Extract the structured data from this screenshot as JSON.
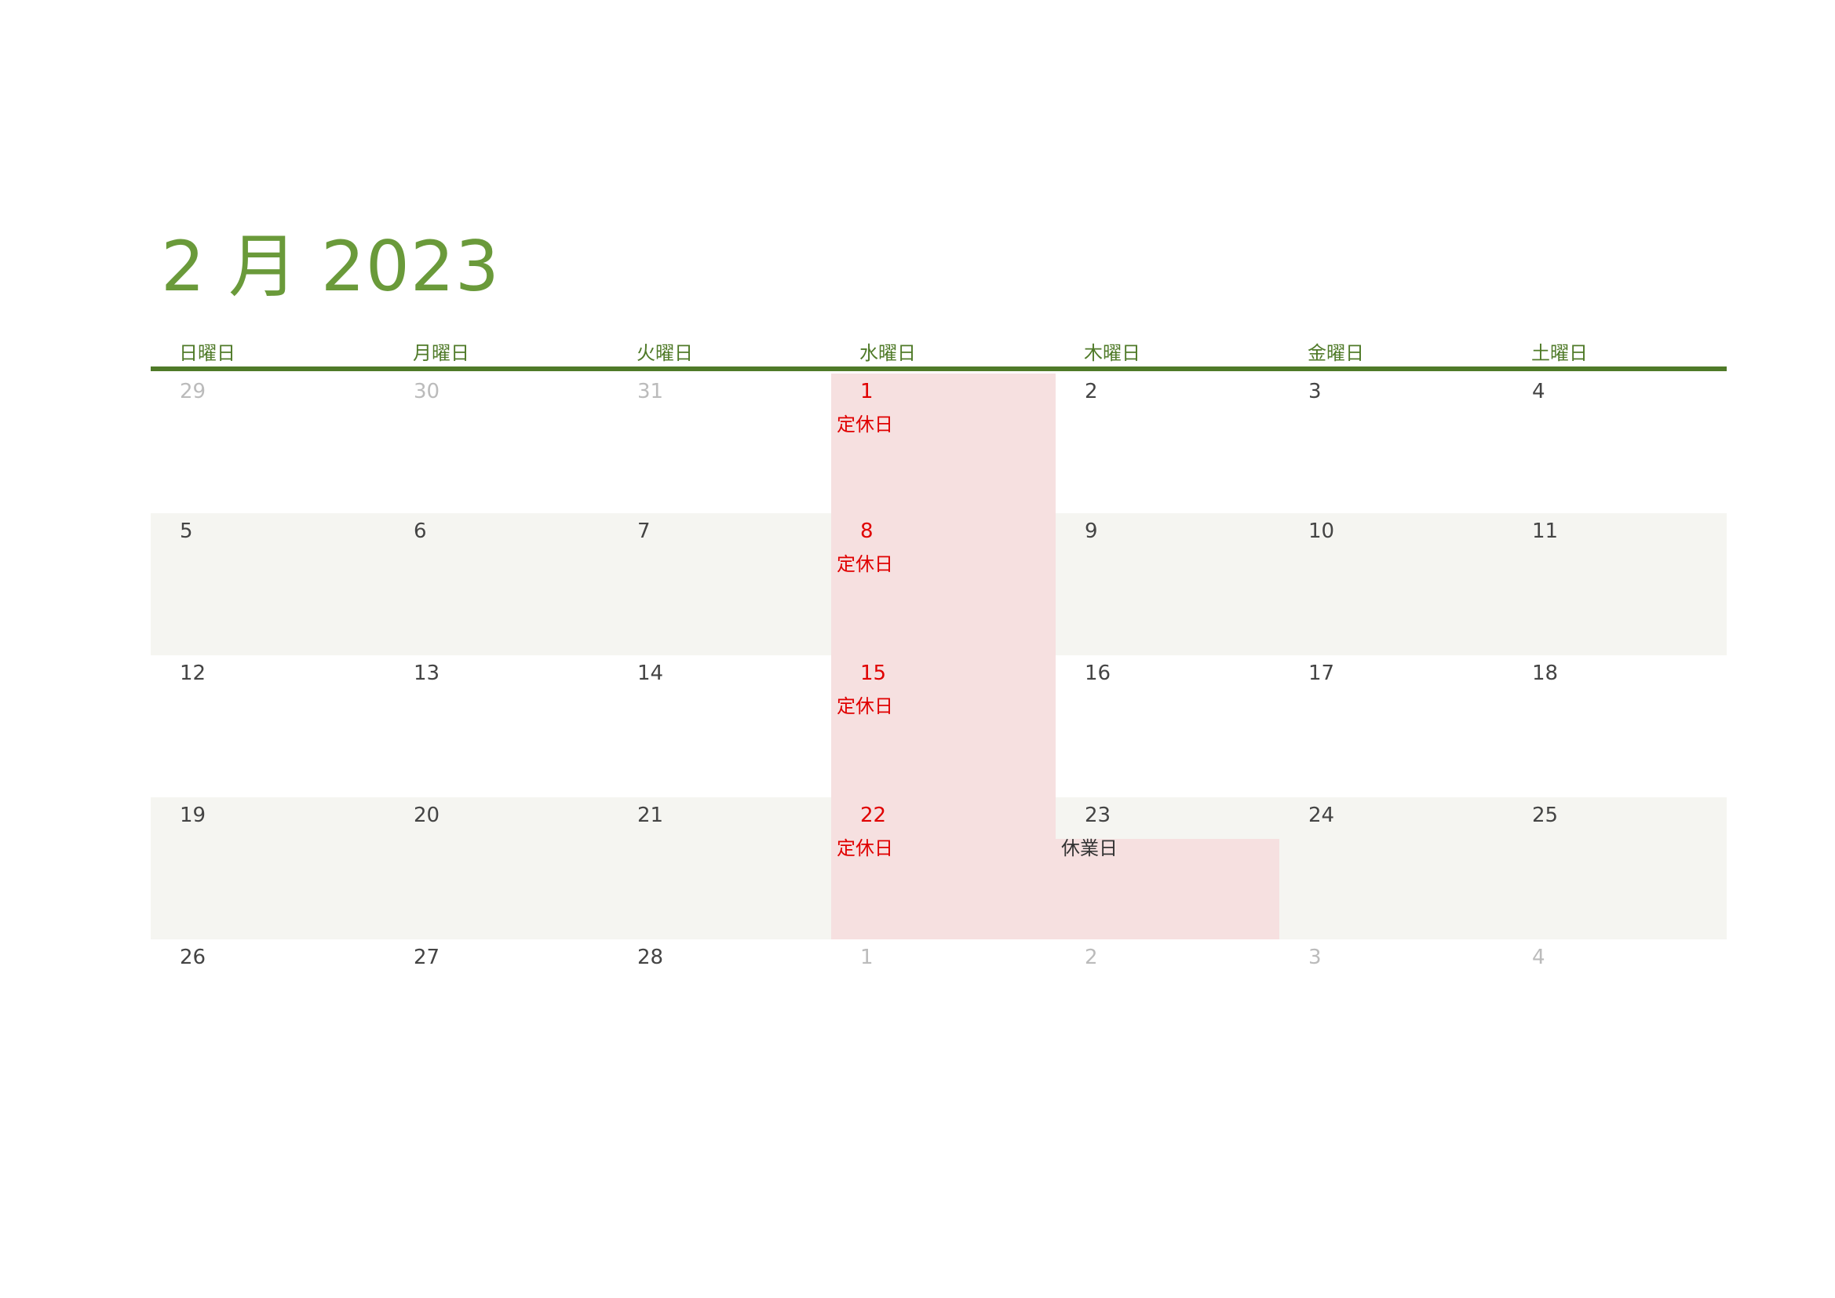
{
  "title": "2 月 2023",
  "weekdays": [
    "日曜日",
    "月曜日",
    "火曜日",
    "水曜日",
    "木曜日",
    "金曜日",
    "土曜日"
  ],
  "colors": {
    "accent": "#4f7a28",
    "title": "#6a9a3a",
    "closed_text": "#e00000",
    "closed_fill": "#f6e0e0",
    "stripe": "#f5f5f1"
  },
  "weeks": [
    [
      {
        "day": "29",
        "muted": true
      },
      {
        "day": "30",
        "muted": true
      },
      {
        "day": "31",
        "muted": true
      },
      {
        "day": "1",
        "closed": true,
        "note": "定休日"
      },
      {
        "day": "2"
      },
      {
        "day": "3"
      },
      {
        "day": "4"
      }
    ],
    [
      {
        "day": "5"
      },
      {
        "day": "6"
      },
      {
        "day": "7"
      },
      {
        "day": "8",
        "closed": true,
        "note": "定休日"
      },
      {
        "day": "9"
      },
      {
        "day": "10"
      },
      {
        "day": "11"
      }
    ],
    [
      {
        "day": "12"
      },
      {
        "day": "13"
      },
      {
        "day": "14"
      },
      {
        "day": "15",
        "closed": true,
        "note": "定休日"
      },
      {
        "day": "16"
      },
      {
        "day": "17"
      },
      {
        "day": "18"
      }
    ],
    [
      {
        "day": "19"
      },
      {
        "day": "20"
      },
      {
        "day": "21"
      },
      {
        "day": "22",
        "closed": true,
        "note": "定休日"
      },
      {
        "day": "23",
        "holiday": true,
        "note": "休業日"
      },
      {
        "day": "24"
      },
      {
        "day": "25"
      }
    ],
    [
      {
        "day": "26"
      },
      {
        "day": "27"
      },
      {
        "day": "28"
      },
      {
        "day": "1",
        "muted": true
      },
      {
        "day": "2",
        "muted": true
      },
      {
        "day": "3",
        "muted": true
      },
      {
        "day": "4",
        "muted": true
      }
    ]
  ]
}
